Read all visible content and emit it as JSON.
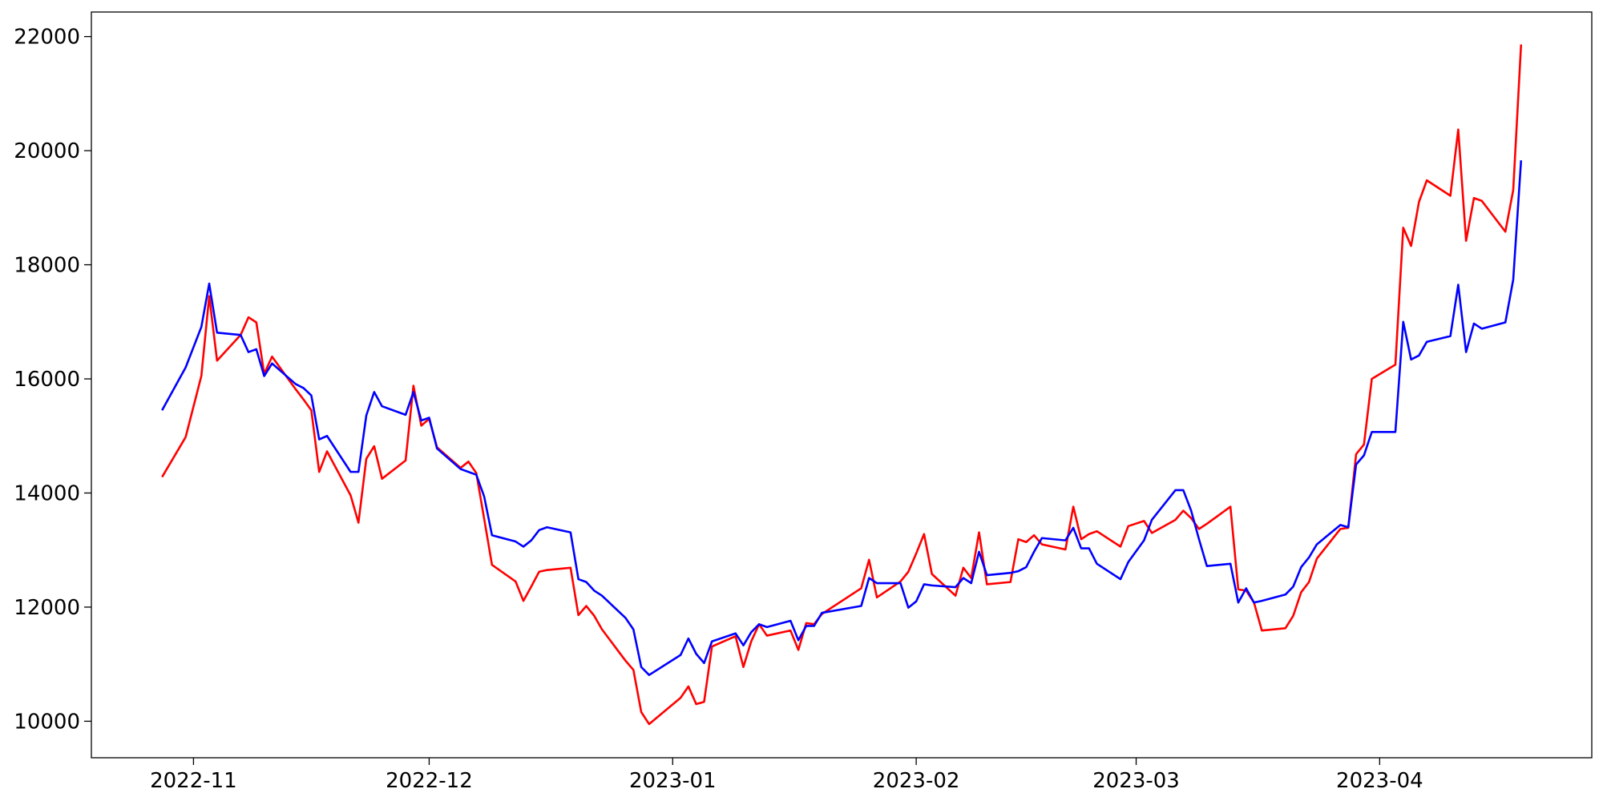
{
  "chart_data": {
    "type": "line",
    "x": [
      "2022-10-28",
      "2022-10-31",
      "2022-11-02",
      "2022-11-03",
      "2022-11-04",
      "2022-11-07",
      "2022-11-08",
      "2022-11-09",
      "2022-11-10",
      "2022-11-11",
      "2022-11-14",
      "2022-11-15",
      "2022-11-16",
      "2022-11-17",
      "2022-11-18",
      "2022-11-21",
      "2022-11-22",
      "2022-11-23",
      "2022-11-24",
      "2022-11-25",
      "2022-11-28",
      "2022-11-29",
      "2022-11-30",
      "2022-12-01",
      "2022-12-02",
      "2022-12-05",
      "2022-12-06",
      "2022-12-07",
      "2022-12-08",
      "2022-12-09",
      "2022-12-12",
      "2022-12-13",
      "2022-12-14",
      "2022-12-15",
      "2022-12-16",
      "2022-12-19",
      "2022-12-20",
      "2022-12-21",
      "2022-12-22",
      "2022-12-23",
      "2022-12-26",
      "2022-12-27",
      "2022-12-28",
      "2022-12-29",
      "2023-01-02",
      "2023-01-03",
      "2023-01-04",
      "2023-01-05",
      "2023-01-06",
      "2023-01-09",
      "2023-01-10",
      "2023-01-11",
      "2023-01-12",
      "2023-01-13",
      "2023-01-16",
      "2023-01-17",
      "2023-01-18",
      "2023-01-19",
      "2023-01-20",
      "2023-01-25",
      "2023-01-26",
      "2023-01-27",
      "2023-01-30",
      "2023-01-31",
      "2023-02-01",
      "2023-02-02",
      "2023-02-03",
      "2023-02-06",
      "2023-02-07",
      "2023-02-08",
      "2023-02-09",
      "2023-02-10",
      "2023-02-13",
      "2023-02-14",
      "2023-02-15",
      "2023-02-16",
      "2023-02-17",
      "2023-02-20",
      "2023-02-21",
      "2023-02-22",
      "2023-02-23",
      "2023-02-24",
      "2023-02-27",
      "2023-02-28",
      "2023-03-02",
      "2023-03-03",
      "2023-03-06",
      "2023-03-07",
      "2023-03-08",
      "2023-03-09",
      "2023-03-10",
      "2023-03-13",
      "2023-03-14",
      "2023-03-15",
      "2023-03-16",
      "2023-03-17",
      "2023-03-20",
      "2023-03-21",
      "2023-03-22",
      "2023-03-23",
      "2023-03-24",
      "2023-03-27",
      "2023-03-28",
      "2023-03-29",
      "2023-03-30",
      "2023-03-31",
      "2023-04-03",
      "2023-04-04",
      "2023-04-05",
      "2023-04-06",
      "2023-04-07",
      "2023-04-10",
      "2023-04-11",
      "2023-04-12",
      "2023-04-13",
      "2023-04-14",
      "2023-04-17",
      "2023-04-18",
      "2023-04-19"
    ],
    "series": [
      {
        "color": "#ff0000",
        "values": [
          14280,
          14980,
          16050,
          17450,
          16320,
          16770,
          17080,
          16990,
          16090,
          16390,
          15820,
          15640,
          15450,
          14370,
          14730,
          13960,
          13480,
          14600,
          14820,
          14250,
          14570,
          15880,
          15180,
          15300,
          14800,
          14440,
          14550,
          14350,
          13550,
          12740,
          12450,
          12110,
          12360,
          12620,
          12650,
          12690,
          11860,
          12020,
          11850,
          11610,
          11060,
          10900,
          10160,
          9950,
          10410,
          10610,
          10300,
          10340,
          11310,
          11490,
          10950,
          11400,
          11700,
          11500,
          11590,
          11250,
          11720,
          11700,
          11880,
          12330,
          12830,
          12170,
          12450,
          12620,
          12940,
          13280,
          12580,
          12200,
          12690,
          12510,
          13310,
          12400,
          12440,
          13190,
          13140,
          13260,
          13100,
          13010,
          13760,
          13190,
          13280,
          13330,
          13060,
          13420,
          13510,
          13300,
          13530,
          13690,
          13560,
          13370,
          13460,
          13760,
          12310,
          12290,
          12080,
          11590,
          11630,
          11850,
          12260,
          12440,
          12850,
          13370,
          13390,
          14680,
          14850,
          16000,
          16250,
          18650,
          18330,
          19100,
          19480,
          19210,
          20370,
          18420,
          19170,
          19120,
          18580,
          19310,
          21860
        ]
      },
      {
        "color": "#0000ff",
        "values": [
          15450,
          16200,
          16910,
          17670,
          16810,
          16770,
          16470,
          16520,
          16050,
          16270,
          15910,
          15840,
          15710,
          14940,
          15000,
          14370,
          14370,
          15360,
          15770,
          15520,
          15370,
          15770,
          15270,
          15320,
          14780,
          14420,
          14370,
          14320,
          13940,
          13260,
          13150,
          13060,
          13170,
          13350,
          13400,
          13310,
          12490,
          12440,
          12290,
          12200,
          11810,
          11610,
          10950,
          10810,
          11160,
          11450,
          11180,
          11020,
          11400,
          11540,
          11330,
          11560,
          11700,
          11650,
          11760,
          11420,
          11670,
          11670,
          11900,
          12020,
          12510,
          12420,
          12420,
          11990,
          12100,
          12400,
          12380,
          12350,
          12510,
          12420,
          12970,
          12560,
          12600,
          12630,
          12700,
          12970,
          13210,
          13170,
          13390,
          13030,
          13030,
          12760,
          12490,
          12790,
          13170,
          13530,
          14050,
          14050,
          13690,
          13190,
          12720,
          12760,
          12080,
          12330,
          12080,
          12110,
          12220,
          12360,
          12700,
          12870,
          13100,
          13440,
          13400,
          14500,
          14660,
          15070,
          15070,
          17000,
          16340,
          16410,
          16650,
          16750,
          17650,
          16470,
          16970,
          16880,
          16990,
          17740,
          19830
        ]
      }
    ],
    "xlim": [
      "2022-10-19",
      "2023-04-28"
    ],
    "xticks": [
      {
        "value": "2022-11-01",
        "label": "2022-11"
      },
      {
        "value": "2022-12-01",
        "label": "2022-12"
      },
      {
        "value": "2023-01-01",
        "label": "2023-01"
      },
      {
        "value": "2023-02-01",
        "label": "2023-02"
      },
      {
        "value": "2023-03-01",
        "label": "2023-03"
      },
      {
        "value": "2023-04-01",
        "label": "2023-04"
      }
    ],
    "ylim": [
      9360,
      22430
    ],
    "yticks": [
      10000,
      12000,
      14000,
      16000,
      18000,
      20000,
      22000
    ],
    "grid": false
  }
}
